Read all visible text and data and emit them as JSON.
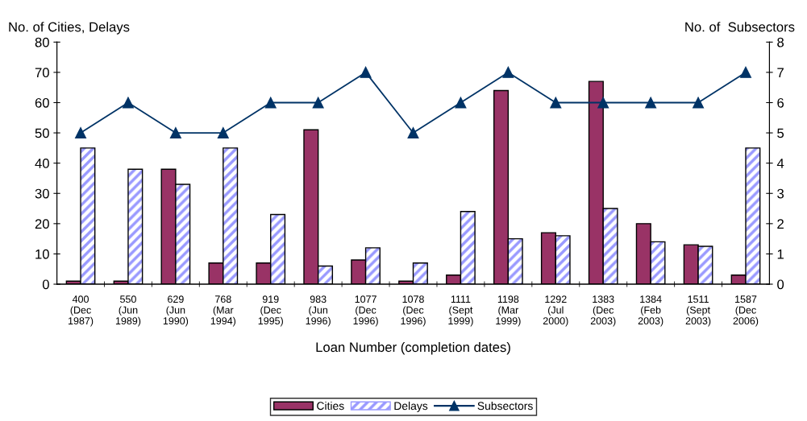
{
  "chart_data": {
    "type": "bar",
    "xlabel": "Loan Number (completion dates)",
    "ylabel": "No. of Cities, Delays",
    "y2label": "No. of  Subsectors",
    "categories": [
      "400\n(Dec\n1987)",
      "550\n(Jun\n1989)",
      "629\n(Jun\n1990)",
      "768\n(Mar\n1994)",
      "919\n(Dec\n1995)",
      "983\n(Jun\n1996)",
      "1077\n(Dec\n1996)",
      "1078\n(Dec\n1996)",
      "1111\n(Sept\n1999)",
      "1198\n(Mar\n1999)",
      "1292\n(Jul\n2000)",
      "1383\n(Dec\n2003)",
      "1384\n(Feb\n2003)",
      "1511\n(Sept\n2003)",
      "1587\n(Dec\n2006)"
    ],
    "series": [
      {
        "name": "Cities",
        "color": "#993366",
        "values": [
          1,
          1,
          38,
          7,
          7,
          51,
          8,
          1,
          3,
          64,
          17,
          67,
          20,
          13,
          3
        ]
      },
      {
        "name": "Delays",
        "color": "#9999ff",
        "values": [
          45,
          38,
          33,
          45,
          23,
          6,
          12,
          7,
          24,
          15,
          16,
          25,
          14,
          12.5,
          45
        ]
      },
      {
        "name": "Subsectors",
        "type": "line",
        "axis": "y2",
        "color": "#003366",
        "marker": "triangle",
        "values": [
          5,
          6,
          5,
          5,
          6,
          6,
          7,
          5,
          6,
          7,
          6,
          6,
          6,
          6,
          7
        ]
      }
    ],
    "ylim": [
      0,
      80
    ],
    "yticks": [
      0,
      10,
      20,
      30,
      40,
      50,
      60,
      70,
      80
    ],
    "y2lim": [
      0,
      8
    ],
    "y2ticks": [
      0,
      1,
      2,
      3,
      4,
      5,
      6,
      7,
      8
    ],
    "grid": false,
    "legend": "bottom"
  }
}
